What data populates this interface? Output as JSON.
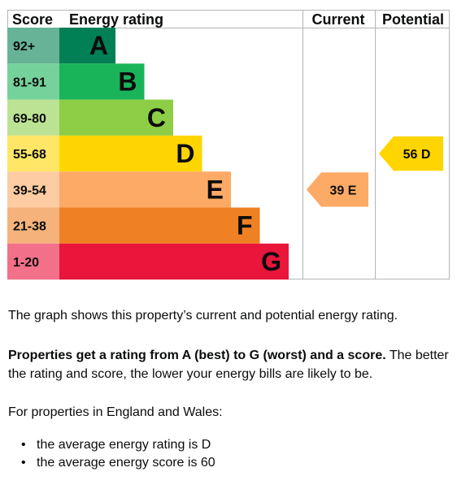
{
  "chart_data": {
    "type": "bar",
    "headers": {
      "score": "Score",
      "rating": "Energy rating",
      "current": "Current",
      "potential": "Potential"
    },
    "bands": [
      {
        "letter": "A",
        "range": "92+",
        "bar_color": "#008054",
        "label_color": "#66b398",
        "text_color": "#0b0c0c"
      },
      {
        "letter": "B",
        "range": "81-91",
        "bar_color": "#19b459",
        "label_color": "#76d29b",
        "text_color": "#0b0c0c"
      },
      {
        "letter": "C",
        "range": "69-80",
        "bar_color": "#8dce46",
        "label_color": "#bce293",
        "text_color": "#0b0c0c"
      },
      {
        "letter": "D",
        "range": "55-68",
        "bar_color": "#ffd500",
        "label_color": "#ffe666",
        "text_color": "#0b0c0c"
      },
      {
        "letter": "E",
        "range": "39-54",
        "bar_color": "#fcaa65",
        "label_color": "#fdcca3",
        "text_color": "#0b0c0c"
      },
      {
        "letter": "F",
        "range": "21-38",
        "bar_color": "#ef8023",
        "label_color": "#f5b37b",
        "text_color": "#0b0c0c"
      },
      {
        "letter": "G",
        "range": "1-20",
        "bar_color": "#e9153b",
        "label_color": "#f27089",
        "text_color": "#0b0c0c"
      }
    ],
    "current": {
      "score": 39,
      "band": "E",
      "label": "39  E",
      "color": "#fcaa65"
    },
    "potential": {
      "score": 56,
      "band": "D",
      "label": "56  D",
      "color": "#ffd500"
    }
  },
  "text": {
    "intro": "The graph shows this property’s current and potential energy rating.",
    "bold": "Properties get a rating from A (best) to G (worst) and a score.",
    "rest": " The better the rating and score, the lower your energy bills are likely to be.",
    "region": "For properties in England and Wales:",
    "bullets": [
      "the average energy rating is D",
      "the average energy score is 60"
    ]
  }
}
